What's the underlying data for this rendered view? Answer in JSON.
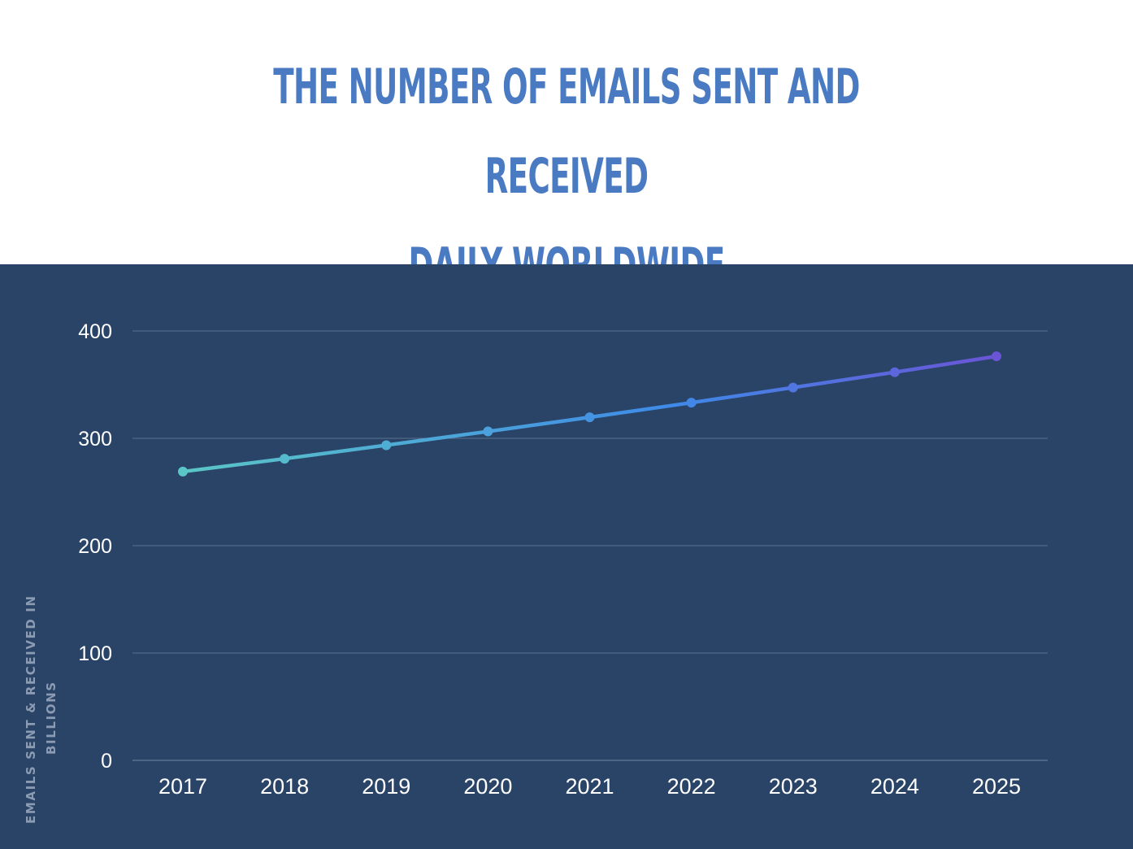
{
  "colors": {
    "title": "#4a7bc2",
    "panel": "#2a4467",
    "grid": "#5b7291",
    "line_start": "#5bc6c6",
    "line_mid": "#3f8ae8",
    "line_end": "#6a55d6"
  },
  "chart_data": {
    "type": "line",
    "title_lines": [
      "THE NUMBER OF EMAILS SENT AND RECEIVED",
      "DAILY WORLDWIDE"
    ],
    "xlabel": "",
    "ylabel_lines": [
      "EMAILS SENT & RECEIVED IN",
      "BILLIONS"
    ],
    "categories": [
      "2017",
      "2018",
      "2019",
      "2020",
      "2021",
      "2022",
      "2023",
      "2024",
      "2025"
    ],
    "values": [
      269,
      281,
      293.6,
      306.4,
      319.6,
      333.2,
      347.3,
      361.6,
      376.4
    ],
    "ylim": [
      0,
      400
    ],
    "yticks": [
      0,
      100,
      200,
      300,
      400
    ],
    "grid": true,
    "legend": "none"
  }
}
